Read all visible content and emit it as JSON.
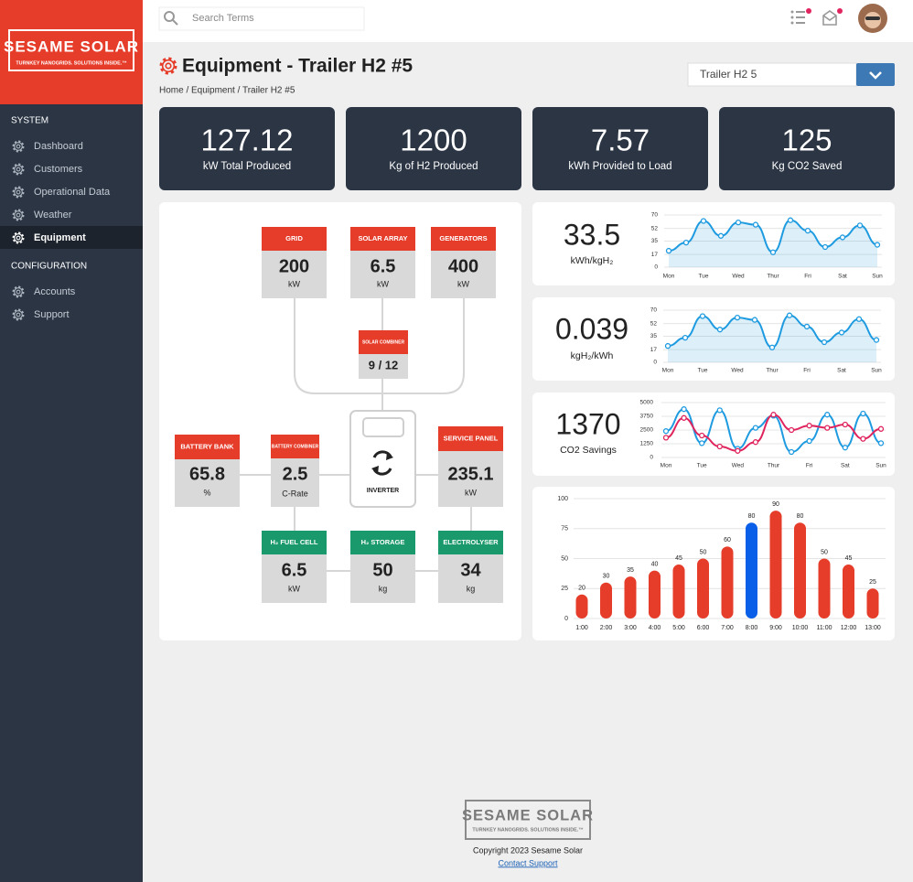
{
  "sidebar": {
    "logo": {
      "title": "SESAME SOLAR",
      "tagline": "TURNKEY NANOGRIDS. SOLUTIONS INSIDE.™"
    },
    "sections": [
      {
        "title": "SYSTEM",
        "items": [
          {
            "label": "Dashboard"
          },
          {
            "label": "Customers"
          },
          {
            "label": "Operational Data"
          },
          {
            "label": "Weather"
          },
          {
            "label": "Equipment",
            "active": true
          }
        ]
      },
      {
        "title": "CONFIGURATION",
        "items": [
          {
            "label": "Accounts"
          },
          {
            "label": "Support"
          }
        ]
      }
    ]
  },
  "topbar": {
    "search_placeholder": "Search Terms"
  },
  "header": {
    "title": "Equipment - Trailer H2 #5",
    "breadcrumb": "Home / Equipment / Trailer H2 #5",
    "select": "Trailer H2 5"
  },
  "stats": [
    {
      "value": 127.12,
      "label": "kW Total Produced"
    },
    {
      "value": 1200,
      "label": "Kg of H2 Produced"
    },
    {
      "value": 7.57,
      "label": "kWh Provided to Load"
    },
    {
      "value": 125,
      "label": "Kg CO2 Saved"
    }
  ],
  "diagram": {
    "nodes": [
      {
        "title": "GRID",
        "value": 200,
        "unit": "kW",
        "color": "#e63c2a"
      },
      {
        "title": "SOLAR ARRAY",
        "value": 6.5,
        "unit": "kW",
        "color": "#e63c2a"
      },
      {
        "title": "GENERATORS",
        "value": 400,
        "unit": "kW",
        "color": "#e63c2a"
      },
      {
        "title": "SOLAR COMBINER",
        "value": "9 / 12",
        "color": "#e63c2a"
      },
      {
        "title": "BATTERY BANK",
        "value": 65.8,
        "unit": "%",
        "color": "#e63c2a"
      },
      {
        "title": "BATTERY COMBINER",
        "value": 2.5,
        "unit": "C-Rate",
        "color": "#e63c2a"
      },
      {
        "title": "SERVICE PANEL",
        "value": 235.1,
        "unit": "kW",
        "color": "#e63c2a"
      },
      {
        "title": "H₂ FUEL CELL",
        "value": 6.5,
        "unit": "kW",
        "color": "#1a9a6c"
      },
      {
        "title": "H₂ STORAGE",
        "value": 50,
        "unit": "kg",
        "color": "#1a9a6c"
      },
      {
        "title": "ELECTROLYSER",
        "value": 34,
        "unit": "kg",
        "color": "#1a9a6c"
      }
    ],
    "inverter": {
      "label": "INVERTER"
    }
  },
  "charts": [
    {
      "value": 33.5,
      "label": "kWh/kgH₂",
      "chart_data": {
        "type": "line",
        "area": true,
        "categories": [
          "Mon",
          null,
          "Tue",
          null,
          "Wed",
          null,
          "Thur",
          null,
          "Fri",
          null,
          "Sat",
          null,
          "Sun"
        ],
        "series": [
          {
            "color": "#1e9be0",
            "values": [
              22,
              33,
              62,
              42,
              60,
              57,
              20,
              63,
              49,
              27,
              40,
              56,
              30
            ]
          }
        ],
        "ylim": [
          0,
          70
        ],
        "yticks": [
          0,
          17,
          35,
          52,
          70
        ],
        "grid": true
      }
    },
    {
      "value": 0.039,
      "label": "kgH₂/kWh",
      "chart_data": {
        "type": "line",
        "area": true,
        "categories": [
          "Mon",
          null,
          "Tue",
          null,
          "Wed",
          null,
          "Thur",
          null,
          "Fri",
          null,
          "Sat",
          null,
          "Sun"
        ],
        "series": [
          {
            "color": "#1e9be0",
            "values": [
              22,
              33,
              62,
              44,
              60,
              57,
              20,
              63,
              48,
              27,
              40,
              58,
              30
            ]
          }
        ],
        "ylim": [
          0,
          70
        ],
        "yticks": [
          0,
          17,
          35,
          52,
          70
        ],
        "grid": true
      }
    },
    {
      "value": 1370,
      "label": "CO2 Savings",
      "chart_data": {
        "type": "line",
        "area": false,
        "categories": [
          "Mon",
          null,
          "Tue",
          null,
          "Wed",
          null,
          "Thur",
          null,
          "Fri",
          null,
          "Sat",
          null,
          "Sun"
        ],
        "series": [
          {
            "color": "#1e9be0",
            "values": [
              2400,
              4400,
              1300,
              4300,
              800,
              2700,
              3800,
              500,
              1500,
              3900,
              900,
              4000,
              1300
            ]
          },
          {
            "color": "#e0245e",
            "values": [
              1800,
              3600,
              2000,
              1000,
              600,
              1400,
              3900,
              2500,
              2900,
              2700,
              3000,
              1700,
              2600
            ]
          }
        ],
        "ylim": [
          0,
          5000
        ],
        "yticks": [
          0,
          1250,
          2500,
          3750,
          5000
        ],
        "grid": true
      }
    }
  ],
  "bar_chart": {
    "chart_data": {
      "type": "bar",
      "categories": [
        "1:00",
        "2:00",
        "3:00",
        "4:00",
        "5:00",
        "6:00",
        "7:00",
        "8:00",
        "9:00",
        "10:00",
        "11:00",
        "12:00",
        "13:00"
      ],
      "values": [
        20,
        30,
        35,
        40,
        45,
        50,
        60,
        80,
        90,
        80,
        50,
        45,
        25
      ],
      "colors": [
        "#e63c2a",
        "#e63c2a",
        "#e63c2a",
        "#e63c2a",
        "#e63c2a",
        "#e63c2a",
        "#e63c2a",
        "#0a5fe8",
        "#e63c2a",
        "#e63c2a",
        "#e63c2a",
        "#e63c2a",
        "#e63c2a"
      ],
      "ylim": [
        0,
        100
      ],
      "yticks": [
        0,
        25,
        50,
        75,
        100
      ],
      "grid": true
    }
  },
  "footer": {
    "logo": {
      "title": "SESAME SOLAR",
      "tagline": "TURNKEY NANOGRIDS. SOLUTIONS INSIDE.™"
    },
    "copyright": "Copyright 2023 Sesame Solar",
    "link": "Contact Support"
  }
}
